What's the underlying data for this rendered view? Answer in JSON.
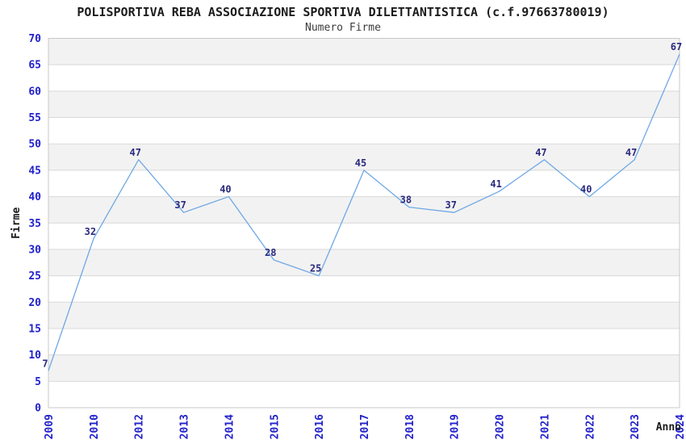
{
  "chart_data": {
    "type": "line",
    "title": "POLISPORTIVA REBA ASSOCIAZIONE SPORTIVA DILETTANTISTICA (c.f.97663780019)",
    "subtitle": "Numero Firme",
    "xlabel": "Anno",
    "ylabel": "Firme",
    "categories": [
      "2009",
      "2010",
      "2012",
      "2013",
      "2014",
      "2015",
      "2016",
      "2017",
      "2018",
      "2019",
      "2020",
      "2021",
      "2022",
      "2023",
      "2024"
    ],
    "values": [
      7,
      32,
      47,
      37,
      40,
      28,
      25,
      45,
      38,
      37,
      41,
      47,
      40,
      47,
      67
    ],
    "point_labels": [
      "7",
      "32",
      "47",
      "37",
      "40",
      "28",
      "25",
      "45",
      "38",
      "37",
      "41",
      "47",
      "40",
      "47",
      "67"
    ],
    "y_ticks": [
      0,
      5,
      10,
      15,
      20,
      25,
      30,
      35,
      40,
      45,
      50,
      55,
      60,
      65,
      70
    ],
    "ylim": [
      0,
      70
    ],
    "ytick_step": 5,
    "grid": true,
    "background_bands": "alternating-horizontal",
    "legend_position": "none",
    "x_tick_rotation_degrees": 90,
    "colors": {
      "line": "#6fa8e4",
      "point_label": "#2a2a7e",
      "tick_label": "#2121cc",
      "axis_title": "#1a1a1a",
      "band": "#f2f2f2",
      "grid": "#d9d9d9",
      "border": "#c8c8c8",
      "background": "#ffffff"
    }
  }
}
